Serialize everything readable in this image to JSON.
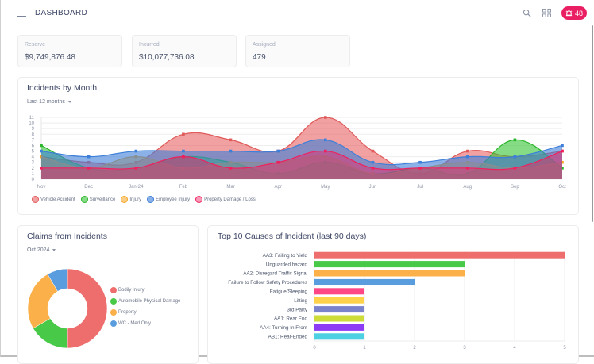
{
  "header": {
    "title": "DASHBOARD",
    "alert_count": "48",
    "icons": [
      "menu-icon",
      "search-icon",
      "apps-grid-icon",
      "alarm-icon"
    ]
  },
  "stats": [
    {
      "label": "Reserve",
      "value": "$9,749,876.48"
    },
    {
      "label": "Incurred",
      "value": "$10,077,736.08"
    },
    {
      "label": "Assigned",
      "value": "479"
    }
  ],
  "incidents_panel": {
    "title": "Incidents by Month",
    "period_selected": "Last 12 months"
  },
  "claims_panel": {
    "title": "Claims from Incidents",
    "period_selected": "Oct 2024"
  },
  "causes_panel": {
    "title": "Top 10 Causes of Incident (last 90 days)"
  },
  "chart_data": [
    {
      "type": "area",
      "title": "Incidents by Month",
      "categories": [
        "Nov",
        "Dec",
        "Jan-24",
        "Feb",
        "Mar",
        "Apr",
        "May",
        "Jun",
        "Jul",
        "Aug",
        "Sep",
        "Oct"
      ],
      "ylim": [
        0,
        11
      ],
      "yticks": [
        0,
        1,
        2,
        3,
        4,
        5,
        6,
        7,
        8,
        9,
        10,
        11
      ],
      "grid": true,
      "legend": "bottom-left",
      "series": [
        {
          "name": "Vehicle Accident",
          "color": "#e05a5a",
          "fill": "rgba(229,83,83,0.55)",
          "values": [
            4,
            3,
            3,
            8,
            7,
            5,
            11,
            5,
            1,
            5,
            4,
            5
          ]
        },
        {
          "name": "Surveillance",
          "color": "#2cb52c",
          "fill": "rgba(52,196,52,0.6)",
          "values": [
            6,
            2,
            2,
            4,
            3,
            1,
            3,
            1,
            2,
            1,
            7,
            2
          ]
        },
        {
          "name": "Injury",
          "color": "#f5a623",
          "fill": "rgba(245,166,35,0.55)",
          "values": [
            4,
            2,
            4,
            2,
            3,
            3,
            4,
            1,
            2,
            3,
            2,
            3
          ]
        },
        {
          "name": "Employee Injury",
          "color": "#3d7fd9",
          "fill": "rgba(61,127,217,0.6)",
          "values": [
            5,
            4,
            5,
            5,
            5,
            5,
            7,
            3,
            3,
            4,
            4,
            6
          ]
        },
        {
          "name": "Property Damage / Loss",
          "color": "#f0205f",
          "fill": "rgba(240,32,95,0.45)",
          "values": [
            2,
            2,
            2,
            4,
            2,
            3,
            5,
            2,
            2,
            2,
            2,
            5
          ]
        }
      ]
    },
    {
      "type": "pie",
      "title": "Claims from Incidents",
      "legend": "right",
      "categories": [
        "Bodily Injury",
        "Automobile Physical Damage",
        "Property",
        "WC - Med Only"
      ],
      "values": [
        6,
        2,
        3,
        1
      ],
      "colors": [
        "#ee6e6e",
        "#48c948",
        "#fbb04a",
        "#5a9ddf"
      ]
    },
    {
      "type": "bar",
      "orientation": "horizontal",
      "title": "Top 10 Causes of Incident (last 90 days)",
      "categories": [
        "AA3: Failing to Yield",
        "Unguarded hazard",
        "AA2: Disregard Traffic Signal",
        "Failure to Follow Safety Procedures",
        "Fatigue/Sleeping",
        "Lifting",
        "3rd Party",
        "AA1: Rear End",
        "AA4: Turning In Front",
        "AB1: Rear-Ended"
      ],
      "values": [
        5,
        3,
        3,
        2,
        1,
        1,
        1,
        1,
        1,
        1
      ],
      "colors": [
        "#ee6e6e",
        "#48c948",
        "#fbb04a",
        "#5a9ddf",
        "#ff4785",
        "#ffd24a",
        "#7b83cc",
        "#cddc39",
        "#8c3cf5",
        "#4dd0e1"
      ],
      "xlim": [
        0,
        5
      ],
      "xticks": [
        0,
        1,
        2,
        3,
        4,
        5
      ],
      "grid": true
    }
  ]
}
